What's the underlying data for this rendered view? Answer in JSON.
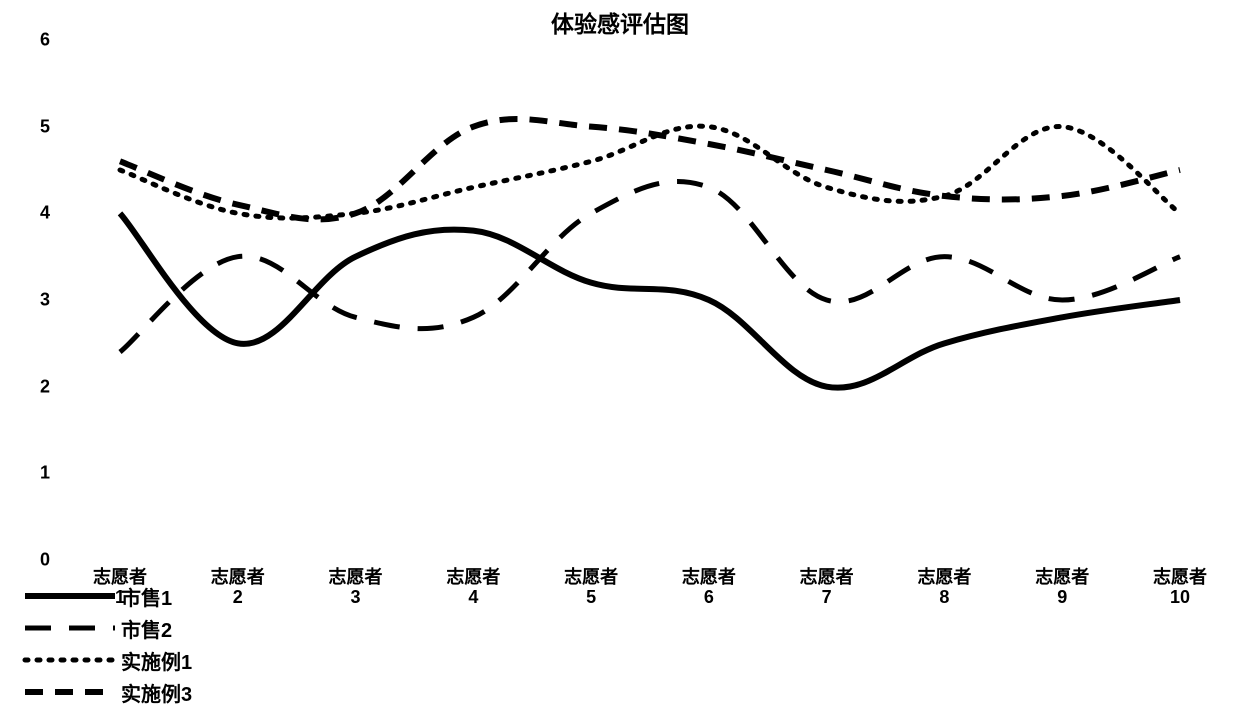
{
  "chart": {
    "type": "line",
    "title": "体验感评估图",
    "title_fontsize": 23,
    "label_fontsize": 20,
    "tick_fontsize": 18,
    "background_color": "#ffffff",
    "line_color": "#000000",
    "ylim": [
      0,
      6
    ],
    "ytick_step": 1,
    "yticks": [
      0,
      1,
      2,
      3,
      4,
      5,
      6
    ],
    "categories": [
      "志愿者 1",
      "志愿者 2",
      "志愿者 3",
      "志愿者 4",
      "志愿者 5",
      "志愿者 6",
      "志愿者 7",
      "志愿者 8",
      "志愿者 9",
      "志愿者 10"
    ],
    "series": [
      {
        "name": "市售1",
        "style": "solid",
        "line_width": 6,
        "dash": "",
        "values": [
          4.0,
          2.5,
          3.5,
          3.8,
          3.2,
          3.0,
          2.0,
          2.5,
          2.8,
          3.0
        ]
      },
      {
        "name": "市售2",
        "style": "longdash",
        "line_width": 5,
        "dash": "26 18",
        "values": [
          2.4,
          3.5,
          2.8,
          2.8,
          4.0,
          4.3,
          3.0,
          3.5,
          3.0,
          3.5
        ]
      },
      {
        "name": "实施例1",
        "style": "dotted",
        "line_width": 5,
        "dash": "3 9",
        "values": [
          4.5,
          4.0,
          4.0,
          4.3,
          4.6,
          5.0,
          4.3,
          4.2,
          5.0,
          4.0
        ]
      },
      {
        "name": "实施例3",
        "style": "dash",
        "line_width": 6,
        "dash": "18 12",
        "values": [
          4.6,
          4.1,
          4.0,
          5.0,
          5.0,
          4.8,
          4.5,
          4.2,
          4.2,
          4.5
        ]
      }
    ],
    "legend_position": "bottom-left"
  }
}
